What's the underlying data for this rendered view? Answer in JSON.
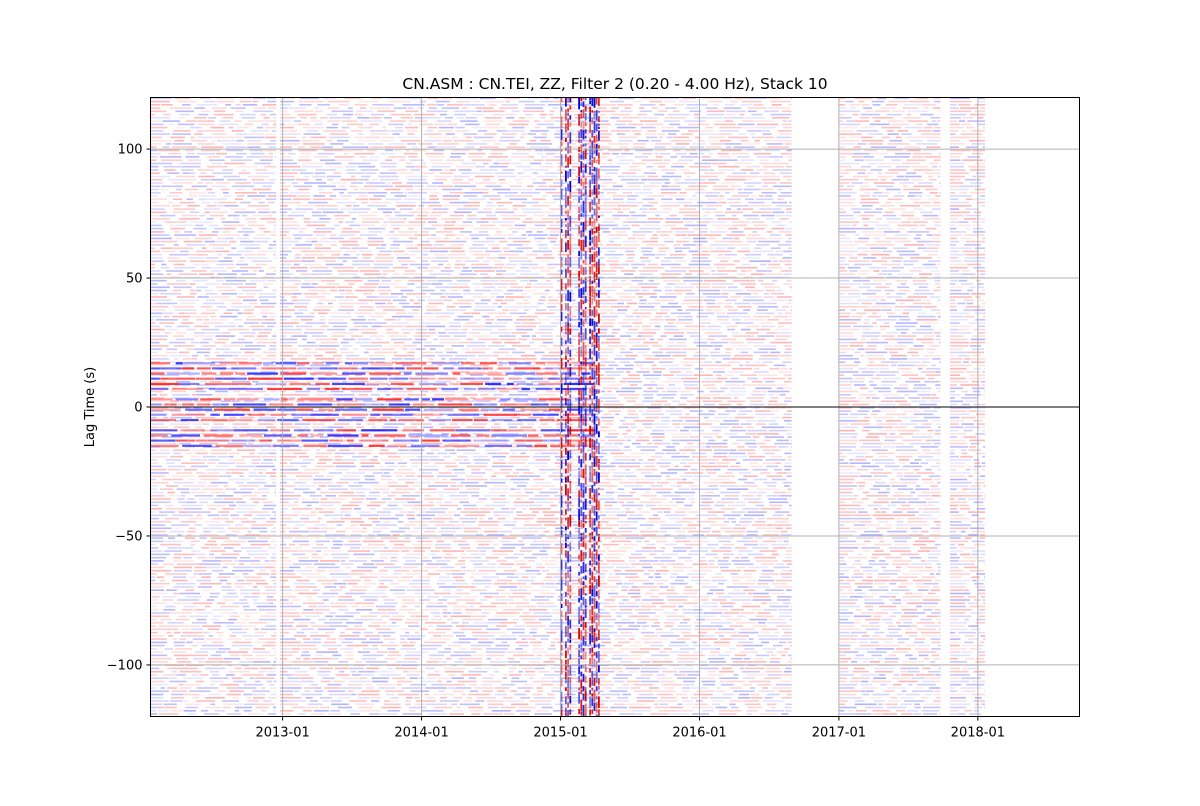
{
  "chart_data": {
    "type": "heatmap",
    "title": "CN.ASM : CN.TEI, ZZ, Filter 2 (0.20 - 4.00 Hz), Stack 10",
    "xlabel": "",
    "ylabel": "Lag Time (s)",
    "xaxis": {
      "kind": "date",
      "range": [
        "2012-01-20",
        "2018-09-25"
      ],
      "ticks": [
        {
          "date": "2013-01-01",
          "label": "2013-01"
        },
        {
          "date": "2014-01-01",
          "label": "2014-01"
        },
        {
          "date": "2015-01-01",
          "label": "2015-01"
        },
        {
          "date": "2016-01-01",
          "label": "2016-01"
        },
        {
          "date": "2017-01-01",
          "label": "2017-01"
        },
        {
          "date": "2018-01-01",
          "label": "2018-01"
        }
      ]
    },
    "yaxis": {
      "range": [
        -120,
        120
      ],
      "ticks": [
        {
          "value": 100,
          "label": "100"
        },
        {
          "value": 50,
          "label": "50"
        },
        {
          "value": 0,
          "label": "0"
        },
        {
          "value": -50,
          "label": "−50"
        },
        {
          "value": -100,
          "label": "−100"
        }
      ]
    },
    "grid": true,
    "colormap": "seismic (blue-white-red)",
    "colors": {
      "negative": "#0000ff",
      "positive": "#ff0000",
      "zero": "#ffffff",
      "grid": "#b0b0b0",
      "zero_line": "#000000"
    },
    "data_periods": [
      {
        "start": "2012-01-20",
        "end": "2012-12-15"
      },
      {
        "start": "2012-12-25",
        "end": "2016-08-30"
      },
      {
        "start": "2017-01-01",
        "end": "2017-09-25"
      },
      {
        "start": "2017-10-20",
        "end": "2018-01-20"
      }
    ],
    "gaps": [
      {
        "start": "2012-12-15",
        "end": "2012-12-25"
      },
      {
        "start": "2016-08-30",
        "end": "2017-01-01"
      },
      {
        "start": "2017-09-25",
        "end": "2017-10-20"
      },
      {
        "start": "2018-01-20",
        "end": "2018-09-25"
      }
    ],
    "coherent_band": {
      "start": "2012-01-20",
      "end": "2015-04-01",
      "lag_range": [
        -15,
        25
      ]
    },
    "noisy_period": {
      "start": "2015-01-01",
      "end": "2015-04-10"
    }
  }
}
